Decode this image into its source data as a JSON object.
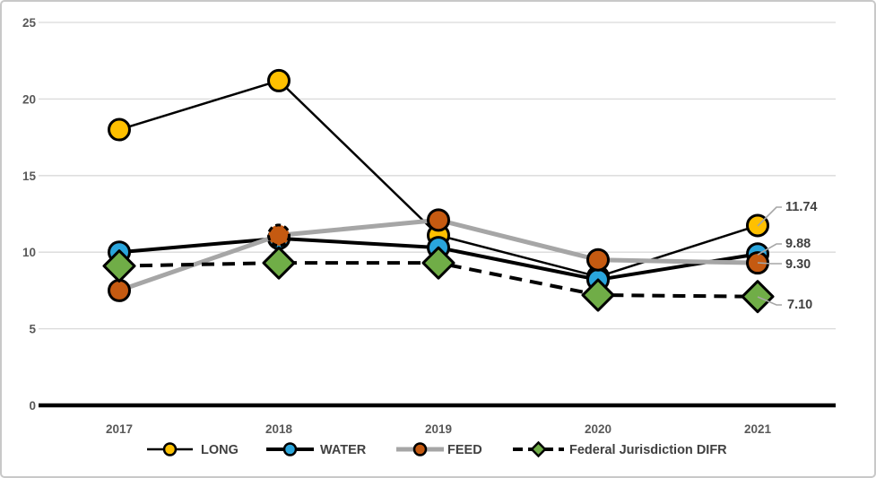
{
  "chart_data": {
    "type": "line",
    "title": "",
    "xlabel": "",
    "ylabel": "",
    "x": [
      "2017",
      "2018",
      "2019",
      "2020",
      "2021"
    ],
    "y_ticks": [
      0,
      5,
      10,
      15,
      20,
      25
    ],
    "ylim": [
      0,
      25
    ],
    "grid": true,
    "legend_position": "bottom",
    "series": [
      {
        "name": "LONG",
        "slug": "long",
        "marker": "circle",
        "marker_color": "#FFC000",
        "line_color": "#000000",
        "line_style": "solid",
        "line_width": 2.5,
        "values": [
          18.0,
          21.2,
          11.1,
          8.4,
          11.74
        ],
        "end_label": "11.74"
      },
      {
        "name": "WATER",
        "slug": "water",
        "marker": "circle",
        "marker_color": "#2AA5DC",
        "line_color": "#000000",
        "line_style": "solid",
        "line_width": 4,
        "values": [
          10.0,
          10.9,
          10.3,
          8.2,
          9.88
        ],
        "end_label": "9.88"
      },
      {
        "name": "FEED",
        "slug": "feed",
        "marker": "circle",
        "marker_color": "#C55A11",
        "line_color": "#A6A6A6",
        "line_style": "solid",
        "line_width": 5,
        "values": [
          7.5,
          11.1,
          12.1,
          9.5,
          9.3
        ],
        "end_label": "9.30",
        "dashed_marker_index": 1
      },
      {
        "name": "Federal Jurisdiction DIFR",
        "slug": "federal-jurisdiction-difr",
        "marker": "diamond",
        "marker_color": "#70AD47",
        "line_color": "#000000",
        "line_style": "dashed",
        "line_width": 4,
        "values": [
          9.1,
          9.3,
          9.3,
          7.2,
          7.1
        ],
        "end_label": "7.10"
      }
    ]
  },
  "colors": {
    "background": "#FFFFFF",
    "frame_border": "#C8C8C8",
    "gridline": "#D9D9D9",
    "axis_line": "#000000",
    "tick_label": "#595959",
    "data_label": "#404040",
    "legend_label": "#404040",
    "leader_line": "#A6A6A6",
    "marker_outline": "#000000"
  }
}
